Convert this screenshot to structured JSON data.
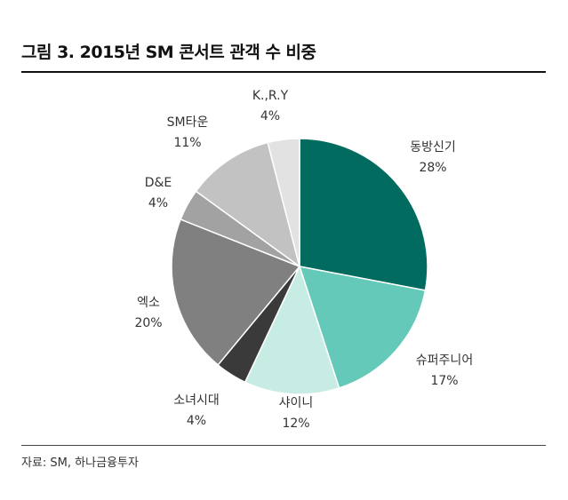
{
  "title": "그림 3. 2015년 SM 콘서트 관객 수 비중",
  "source": "자료: SM, 하나금융투자",
  "chart_data": {
    "type": "pie",
    "title": "그림 3. 2015년 SM 콘서트 관객 수 비중",
    "start": "12 o'clock",
    "direction": "clockwise",
    "slices": [
      {
        "label": "동방신기",
        "value": 28,
        "value_label": "28%",
        "color": "#006b5e"
      },
      {
        "label": "슈퍼주니어",
        "value": 17,
        "value_label": "17%",
        "color": "#64c9b8"
      },
      {
        "label": "샤이니",
        "value": 12,
        "value_label": "12%",
        "color": "#c6ece4"
      },
      {
        "label": "소녀시대",
        "value": 4,
        "value_label": "4%",
        "color": "#3a3a3a"
      },
      {
        "label": "엑소",
        "value": 20,
        "value_label": "20%",
        "color": "#808080"
      },
      {
        "label": "D&E",
        "value": 4,
        "value_label": "4%",
        "color": "#a2a2a2"
      },
      {
        "label": "SM타운",
        "value": 11,
        "value_label": "11%",
        "color": "#c2c2c2"
      },
      {
        "label": "K.,R.Y",
        "value": 4,
        "value_label": "4%",
        "color": "#e2e2e2"
      }
    ]
  }
}
